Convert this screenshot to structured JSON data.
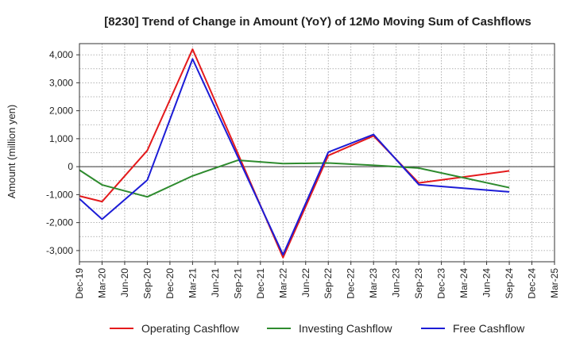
{
  "chart_data": {
    "type": "line",
    "title": "[8230]  Trend of Change in Amount (YoY) of 12Mo Moving Sum of Cashflows",
    "xlabel": "",
    "ylabel": "Amount (million yen)",
    "ylim": [
      -3400,
      4400
    ],
    "yticks": [
      4000,
      3000,
      2000,
      1000,
      0,
      -1000,
      -2000,
      -3000
    ],
    "ytick_labels": [
      "4,000",
      "3,000",
      "2,000",
      "1,000",
      "0",
      "-1,000",
      "-2,000",
      "-3,000"
    ],
    "categories": [
      "Dec-19",
      "Mar-20",
      "Jun-20",
      "Sep-20",
      "Dec-20",
      "Mar-21",
      "Jun-21",
      "Sep-21",
      "Dec-21",
      "Mar-22",
      "Jun-22",
      "Sep-22",
      "Dec-22",
      "Mar-23",
      "Jun-23",
      "Sep-23",
      "Dec-23",
      "Mar-24",
      "Jun-24",
      "Sep-24",
      "Dec-24",
      "Mar-25"
    ],
    "grid": true,
    "legend_position": "bottom",
    "series": [
      {
        "name": "Operating Cashflow",
        "color": "#e41a1c",
        "values": [
          -1050,
          -1250,
          null,
          580,
          null,
          4200,
          null,
          null,
          null,
          -3250,
          null,
          400,
          null,
          1100,
          null,
          -580,
          null,
          null,
          null,
          -150,
          null,
          null
        ]
      },
      {
        "name": "Investing Cashflow",
        "color": "#2e8b2e",
        "values": [
          -120,
          -650,
          null,
          -1080,
          null,
          -330,
          null,
          230,
          null,
          110,
          null,
          130,
          null,
          50,
          null,
          -50,
          null,
          null,
          null,
          -750,
          null,
          null
        ]
      },
      {
        "name": "Free Cashflow",
        "color": "#1c1cd6",
        "values": [
          -1150,
          -1880,
          null,
          -480,
          null,
          3850,
          null,
          null,
          null,
          -3150,
          null,
          520,
          null,
          1150,
          null,
          -640,
          null,
          null,
          null,
          -900,
          null,
          null
        ]
      }
    ]
  }
}
